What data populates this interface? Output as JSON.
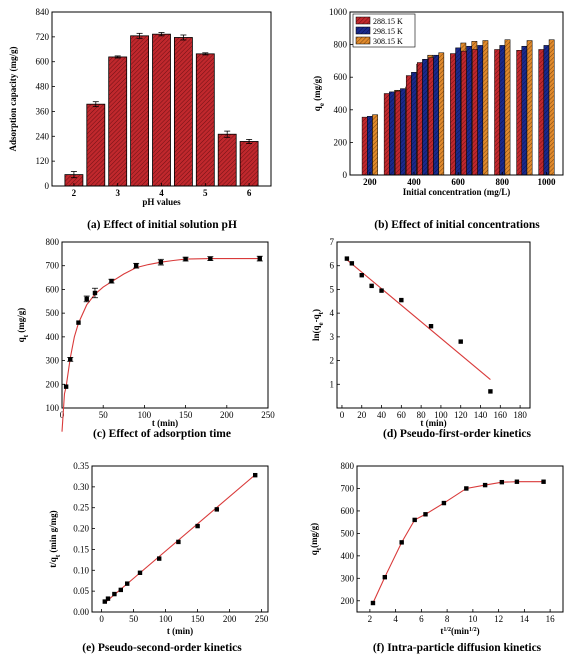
{
  "chart_data": [
    {
      "id": "a",
      "type": "bar",
      "caption": "(a) Effect of initial solution pH",
      "xlabel": "pH values",
      "ylabel": "Adsorption capacity (mg/g)",
      "categories": [
        "2",
        "3",
        "4",
        "5",
        "6"
      ],
      "x": [
        2,
        2.5,
        3,
        3.5,
        4,
        4.5,
        5,
        5.5,
        6
      ],
      "values": [
        55,
        395,
        623,
        725,
        733,
        717,
        638,
        250,
        215
      ],
      "errors": [
        15,
        12,
        5,
        12,
        8,
        12,
        5,
        15,
        10
      ],
      "xlim": [
        1.5,
        6.5
      ],
      "ylim": [
        0,
        840
      ],
      "yticks": [
        0,
        120,
        240,
        360,
        480,
        600,
        720,
        840
      ],
      "color": "#C0282D"
    },
    {
      "id": "b",
      "type": "bar",
      "caption": "(b) Effect of initial concentrations",
      "xlabel": "Initial concentration (mg/L)",
      "ylabel": "qe (mg/g)",
      "ylabel_main": "q",
      "ylabel_sub": "e",
      "ylabel_rest": " (mg/g)",
      "categories": [
        "200",
        "400",
        "600",
        "800",
        "1000"
      ],
      "x": [
        200,
        300,
        350,
        400,
        450,
        500,
        600,
        650,
        700,
        800,
        900,
        1000
      ],
      "series": [
        {
          "name": "288.15 K",
          "color": "#C0282D",
          "values": [
            355,
            500,
            515,
            610,
            690,
            720,
            745,
            760,
            770,
            770,
            765,
            770
          ]
        },
        {
          "name": "298.15 K",
          "color": "#1A2A8C",
          "values": [
            360,
            510,
            530,
            630,
            710,
            735,
            780,
            790,
            795,
            795,
            790,
            795
          ]
        },
        {
          "name": "308.15 K",
          "color": "#E08A2C",
          "values": [
            370,
            520,
            540,
            680,
            735,
            750,
            810,
            820,
            825,
            830,
            825,
            830
          ]
        }
      ],
      "xlim": [
        110,
        1075
      ],
      "ylim": [
        0,
        1000
      ],
      "yticks": [
        0,
        200,
        400,
        600,
        800,
        1000
      ],
      "legend": "top-left"
    },
    {
      "id": "c",
      "type": "scatter",
      "caption": "(c) Effect of adsorption time",
      "xlabel": "t (min)",
      "ylabel": "qt (mg/g)",
      "ylabel_main": "q",
      "ylabel_sub": "t",
      "ylabel_rest": " (mg/g)",
      "x": [
        5,
        10,
        20,
        30,
        40,
        60,
        90,
        120,
        150,
        180,
        240
      ],
      "y": [
        190,
        305,
        460,
        560,
        585,
        635,
        700,
        715,
        728,
        730,
        730
      ],
      "errors": [
        0,
        8,
        0,
        12,
        20,
        8,
        10,
        12,
        8,
        8,
        10
      ],
      "fit_x": [
        0,
        3,
        5,
        10,
        15,
        20,
        30,
        40,
        50,
        60,
        75,
        90,
        105,
        120,
        135,
        150,
        180,
        210,
        240
      ],
      "fit_y": [
        0,
        160,
        190,
        310,
        400,
        458,
        535,
        580,
        610,
        632,
        665,
        692,
        705,
        715,
        722,
        728,
        730,
        730,
        730
      ],
      "xlim": [
        0,
        250
      ],
      "ylim": [
        100,
        800
      ],
      "xticks": [
        0,
        50,
        100,
        150,
        200,
        250
      ],
      "yticks": [
        100,
        200,
        300,
        400,
        500,
        600,
        700,
        800
      ]
    },
    {
      "id": "d",
      "type": "scatter",
      "caption": "(d)     Pseudo-first-order kinetics",
      "xlabel": "t (min)",
      "ylabel": "ln(qe-qt)",
      "ylabel_main": "ln(q",
      "ylabel_sub": "e",
      "ylabel_rest": "-q",
      "ylabel_sub2": "t",
      "ylabel_end": ")",
      "x": [
        5,
        10,
        20,
        30,
        40,
        60,
        90,
        120,
        150
      ],
      "y": [
        6.3,
        6.1,
        5.6,
        5.15,
        4.95,
        4.55,
        3.45,
        2.8,
        0.7
      ],
      "fit_x": [
        5,
        150
      ],
      "fit_y": [
        6.25,
        1.2
      ],
      "xlim": [
        -5,
        190
      ],
      "ylim": [
        0,
        7
      ],
      "xticks": [
        0,
        20,
        40,
        60,
        80,
        100,
        120,
        140,
        160,
        180
      ],
      "yticks": [
        1,
        2,
        3,
        4,
        5,
        6,
        7
      ]
    },
    {
      "id": "e",
      "type": "scatter",
      "caption": "(e) Pseudo-second-order kinetics",
      "xlabel": "t (min)",
      "ylabel": "t/qt (min g/mg)",
      "ylabel_main": "t/q",
      "ylabel_sub": "t",
      "ylabel_rest": " (min g/mg)",
      "x": [
        5,
        10,
        20,
        30,
        40,
        60,
        90,
        120,
        150,
        180,
        240
      ],
      "y": [
        0.025,
        0.032,
        0.043,
        0.053,
        0.068,
        0.094,
        0.128,
        0.168,
        0.206,
        0.246,
        0.328
      ],
      "fit_x": [
        5,
        240
      ],
      "fit_y": [
        0.022,
        0.329
      ],
      "xlim": [
        -15,
        260
      ],
      "ylim": [
        0,
        0.35
      ],
      "xticks": [
        0,
        50,
        100,
        150,
        200,
        250
      ],
      "yticks": [
        0,
        0.05,
        0.1,
        0.15,
        0.2,
        0.25,
        0.3,
        0.35
      ],
      "yticklabels": [
        "0.00",
        "0.05",
        "0.10",
        "0.15",
        "0.20",
        "0.25",
        "0.30",
        "0.35"
      ]
    },
    {
      "id": "f",
      "type": "scatter",
      "caption": "(f) Intra-particle diffusion kinetics",
      "xlabel": "t1/2(min1/2)",
      "xlabel_main": "t",
      "xlabel_sup": "1/2",
      "xlabel_rest": "(min",
      "xlabel_sup2": "1/2",
      "xlabel_end": ")",
      "ylabel": "qt(mg/g)",
      "ylabel_main": "q",
      "ylabel_sub": "t",
      "ylabel_rest": "(mg/g)",
      "x": [
        2.24,
        3.16,
        4.47,
        5.48,
        6.32,
        7.75,
        9.49,
        10.95,
        12.25,
        13.42,
        15.49
      ],
      "y": [
        190,
        305,
        460,
        560,
        585,
        635,
        700,
        715,
        728,
        730,
        730
      ],
      "fit_x": [
        2.24,
        3.16,
        4.47,
        5.48,
        6.32,
        7.75,
        9.49,
        10.95,
        12.25,
        13.42,
        15.49
      ],
      "fit_y": [
        190,
        305,
        460,
        560,
        585,
        635,
        700,
        715,
        728,
        730,
        730
      ],
      "xlim": [
        1,
        17
      ],
      "ylim": [
        150,
        800
      ],
      "xticks": [
        2,
        4,
        6,
        8,
        10,
        12,
        14,
        16
      ],
      "yticks": [
        200,
        300,
        400,
        500,
        600,
        700,
        800
      ]
    }
  ]
}
